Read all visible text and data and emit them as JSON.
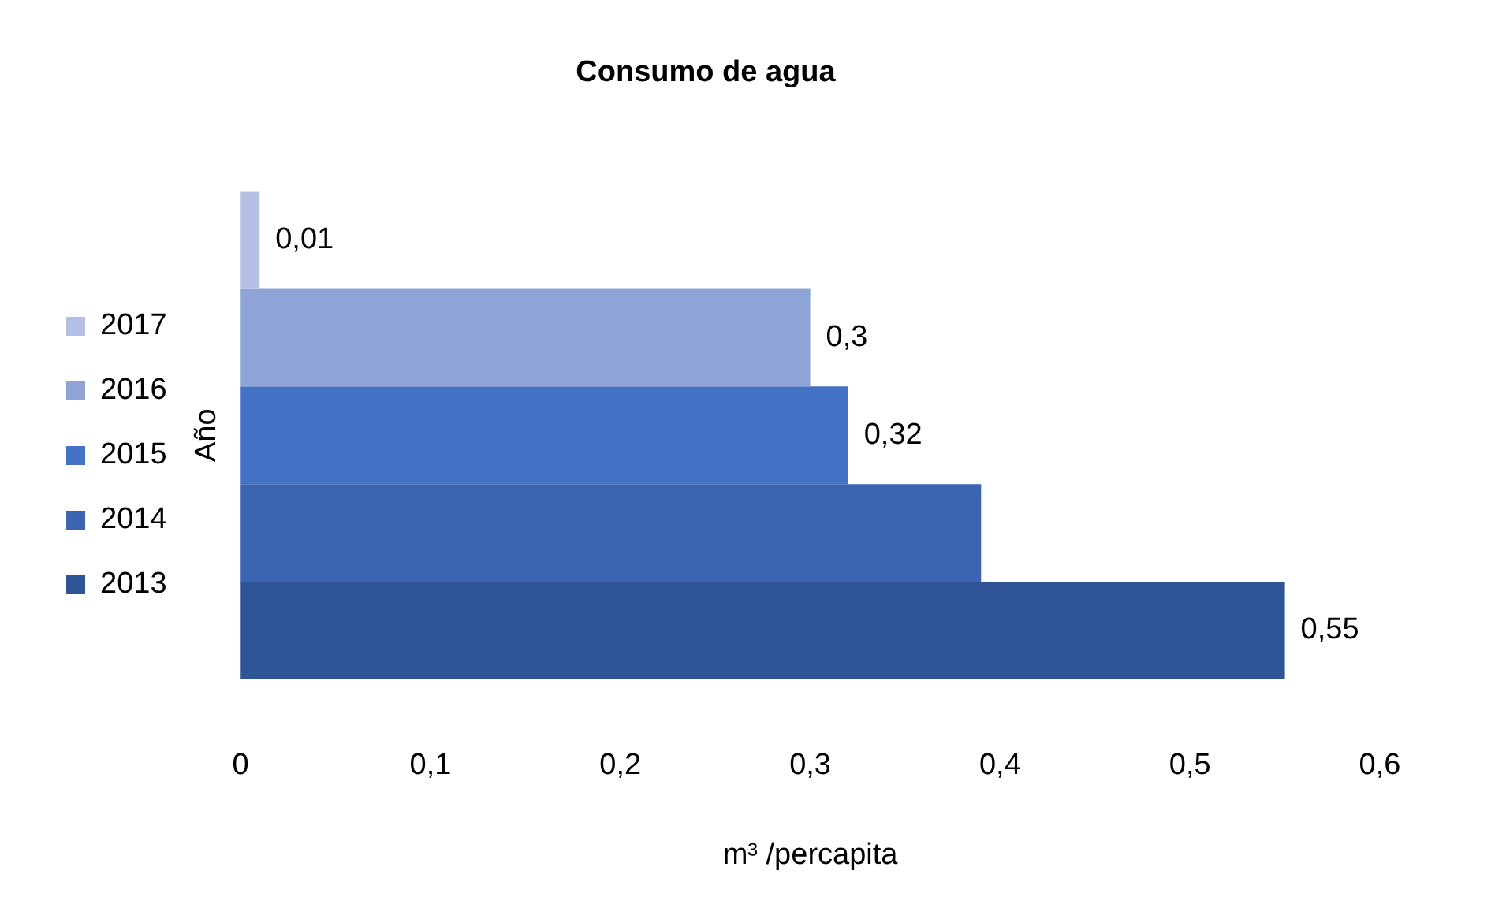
{
  "chart_data": {
    "type": "bar",
    "orientation": "horizontal",
    "title": "Consumo de agua",
    "xlabel": "m³ /percapita",
    "ylabel": "Año",
    "categories": [
      null
    ],
    "series": [
      {
        "name": "2017",
        "color": "#b4c0e3",
        "values": [
          0.01
        ],
        "value_labels": [
          "0,01"
        ]
      },
      {
        "name": "2016",
        "color": "#8fa4d6",
        "values": [
          0.3
        ],
        "value_labels": [
          "0,3"
        ]
      },
      {
        "name": "2015",
        "color": "#4472c4",
        "values": [
          0.32
        ],
        "value_labels": [
          "0,32"
        ]
      },
      {
        "name": "2014",
        "color": "#3b65b0",
        "values": [
          0.39
        ],
        "value_labels": [
          null
        ]
      },
      {
        "name": "2013",
        "color": "#2f5597",
        "values": [
          0.55
        ],
        "value_labels": [
          "0,55"
        ]
      }
    ],
    "xlim": [
      0,
      0.6
    ],
    "xticks": [
      {
        "value": 0,
        "label": "0"
      },
      {
        "value": 0.1,
        "label": "0,1"
      },
      {
        "value": 0.2,
        "label": "0,2"
      },
      {
        "value": 0.3,
        "label": "0,3"
      },
      {
        "value": 0.4,
        "label": "0,4"
      },
      {
        "value": 0.5,
        "label": "0,5"
      },
      {
        "value": 0.6,
        "label": "0,6"
      }
    ],
    "grid": false,
    "legend": "left"
  }
}
